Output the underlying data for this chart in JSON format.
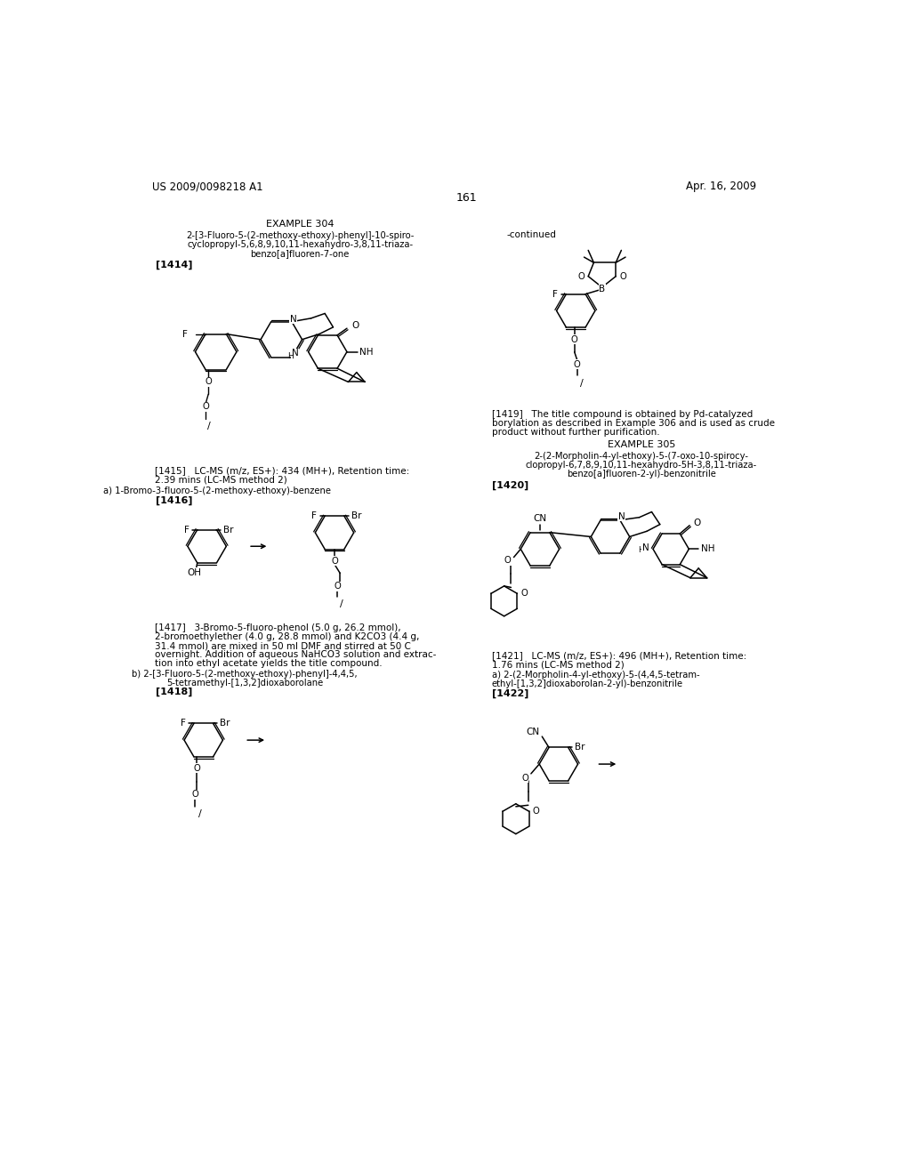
{
  "patent_number": "US 2009/0098218 A1",
  "patent_date": "Apr. 16, 2009",
  "page_number": "161",
  "bg": "#ffffff",
  "fg": "#000000",
  "continued_text": "-continued",
  "example304_title": "EXAMPLE 304",
  "example304_name1": "2-[3-Fluoro-5-(2-methoxy-ethoxy)-phenyl]-10-spiro-",
  "example304_name2": "cyclopropyl-5,6,8,9,10,11-hexahydro-3,8,11-triaza-",
  "example304_name3": "benzo[a]fluoren-7-one",
  "label1414": "[1414]",
  "label1415_text1": "[1415]   LC-MS (m/z, ES+): 434 (MH+), Retention time:",
  "label1415_text2": "2.39 mins (LC-MS method 2)",
  "sub_a_1416": "a) 1-Bromo-3-fluoro-5-(2-methoxy-ethoxy)-benzene",
  "label1416": "[1416]",
  "label1417_text1": "[1417]   3-Bromo-5-fluoro-phenol (5.0 g, 26.2 mmol),",
  "label1417_text2": "2-bromoethylether (4.0 g, 28.8 mmol) and K2CO3 (4.4 g,",
  "label1417_text3": "31.4 mmol) are mixed in 50 ml DMF and stirred at 50 C",
  "label1417_text4": "overnight. Addition of aqueous NaHCO3 solution and extrac-",
  "label1417_text5": "tion into ethyl acetate yields the title compound.",
  "sub_b_1418_1": "b) 2-[3-Fluoro-5-(2-methoxy-ethoxy)-phenyl]-4,4,5,",
  "sub_b_1418_2": "5-tetramethyl-[1,3,2]dioxaborolane",
  "label1418": "[1418]",
  "label1419_text1": "[1419]   The title compound is obtained by Pd-catalyzed",
  "label1419_text2": "borylation as described in Example 306 and is used as crude",
  "label1419_text3": "product without further purification.",
  "example305_title": "EXAMPLE 305",
  "example305_name1": "2-(2-Morpholin-4-yl-ethoxy)-5-(7-oxo-10-spirocy-",
  "example305_name2": "clopropyl-6,7,8,9,10,11-hexahydro-5H-3,8,11-triaza-",
  "example305_name3": "benzo[a]fluoren-2-yl)-benzonitrile",
  "label1420": "[1420]",
  "label1421_text1": "[1421]   LC-MS (m/z, ES+): 496 (MH+), Retention time:",
  "label1421_text2": "1.76 mins (LC-MS method 2)",
  "sub_a_1422_1": "a) 2-(2-Morpholin-4-yl-ethoxy)-5-(4,4,5-tetram-",
  "sub_a_1422_2": "ethyl-[1,3,2]dioxaborolan-2-yl)-benzonitrile",
  "label1422": "[1422]"
}
